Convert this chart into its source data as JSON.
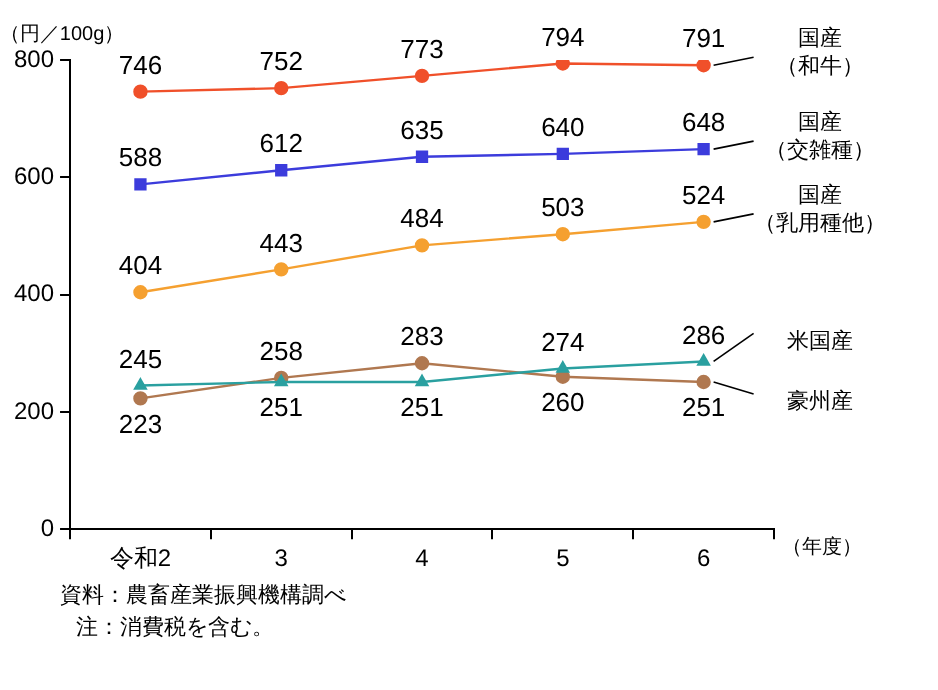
{
  "chart_data": {
    "type": "line",
    "categories": [
      "令和2",
      "3",
      "4",
      "5",
      "6"
    ],
    "series": [
      {
        "name": "国産（和牛）",
        "color": "#f0502a",
        "marker": "circle",
        "values": [
          746,
          752,
          773,
          794,
          791
        ]
      },
      {
        "name": "国産（交雑種）",
        "color": "#3c3cdc",
        "marker": "square",
        "values": [
          588,
          612,
          635,
          640,
          648
        ]
      },
      {
        "name": "国産（乳用種他）",
        "color": "#f5a030",
        "marker": "circle",
        "values": [
          404,
          443,
          484,
          503,
          524
        ]
      },
      {
        "name": "米国産",
        "color": "#2aa0a0",
        "marker": "triangle",
        "values": [
          245,
          251,
          251,
          274,
          286
        ]
      },
      {
        "name": "豪州産",
        "color": "#b07850",
        "marker": "circle",
        "values": [
          223,
          258,
          283,
          260,
          251
        ]
      }
    ],
    "ylim": [
      0,
      800
    ],
    "yticks": [
      0,
      200,
      400,
      600,
      800
    ],
    "ylabel": "（円／100g）",
    "xlabel": "（年度）",
    "data_labels": true,
    "grid": false,
    "legend": false,
    "annotations": [
      "資料：農畜産業振興機構調べ",
      "注：消費税を含む。"
    ]
  }
}
